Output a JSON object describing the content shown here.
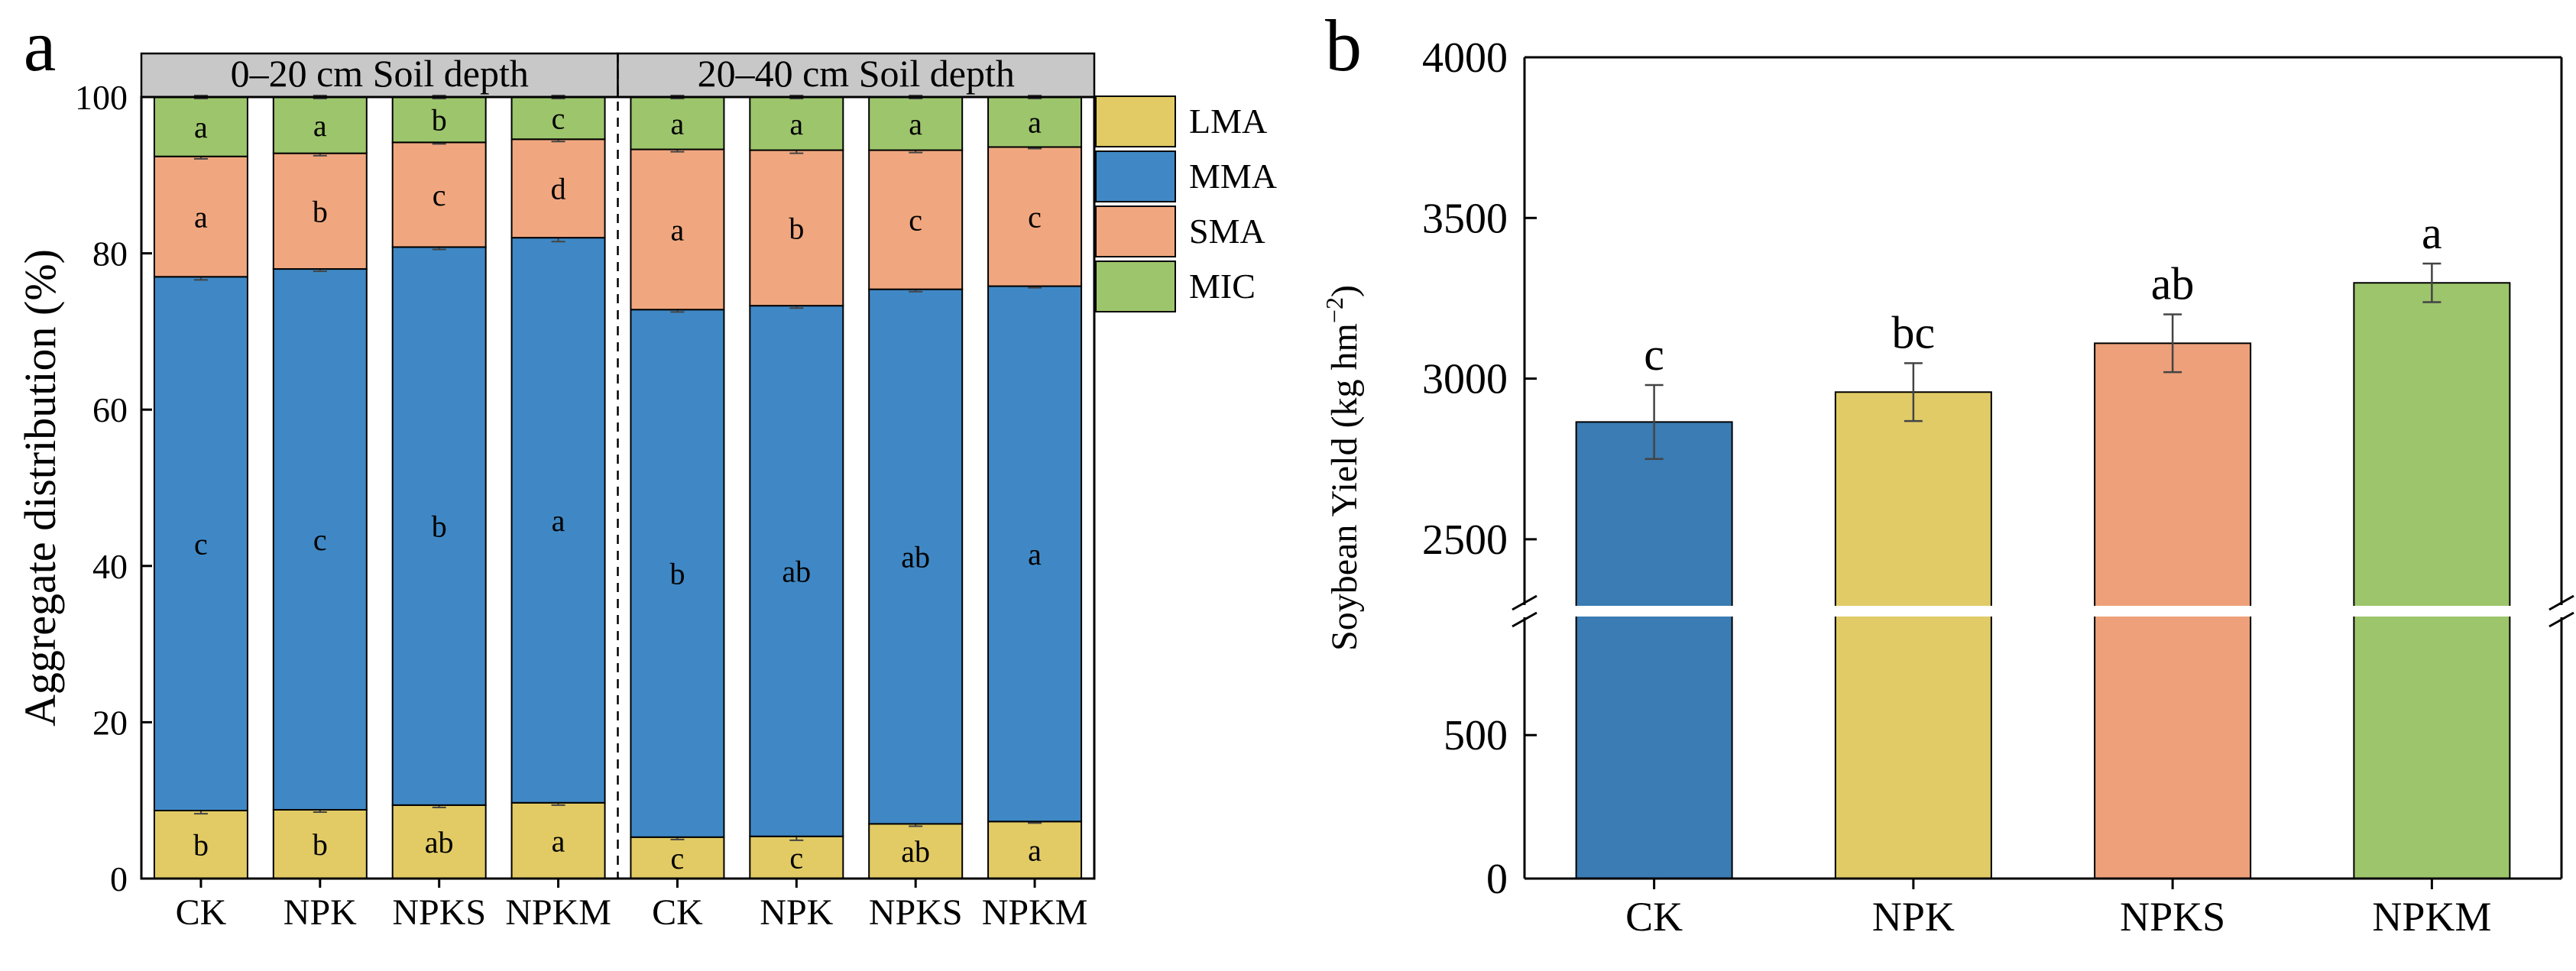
{
  "panel_labels": {
    "a": "a",
    "b": "b"
  },
  "legend": [
    {
      "label": "LMA",
      "color": "#E2CB64"
    },
    {
      "label": "MMA",
      "color": "#3F88C5"
    },
    {
      "label": "SMA",
      "color": "#F0A77F"
    },
    {
      "label": "MIC",
      "color": "#9DC56C"
    }
  ],
  "chart_data": [
    {
      "type": "bar",
      "stacked": true,
      "panel": "a",
      "ylabel": "Aggregate    distribution (%)",
      "ylim": [
        0,
        100
      ],
      "yticks": [
        "0",
        "20",
        "40",
        "60",
        "80",
        "100"
      ],
      "groups": [
        {
          "title": "0–20 cm Soil depth",
          "categories": [
            "CK",
            "NPK",
            "NPKS",
            "NPKM"
          ]
        },
        {
          "title": "20–40 cm Soil depth",
          "categories": [
            "CK",
            "NPK",
            "NPKS",
            "NPKM"
          ]
        }
      ],
      "series": [
        {
          "name": "LMA",
          "values": [
            8.7,
            8.8,
            9.4,
            9.7,
            5.3,
            5.4,
            7.0,
            7.3
          ],
          "errors": [
            0.4,
            0.3,
            0.3,
            0.3,
            0.3,
            0.5,
            0.3,
            0.2
          ],
          "letters": [
            "b",
            "b",
            "ab",
            "a",
            "c",
            "c",
            "ab",
            "a"
          ]
        },
        {
          "name": "MMA",
          "values": [
            68.3,
            69.2,
            71.4,
            72.3,
            67.5,
            67.9,
            68.4,
            68.5
          ],
          "errors": [
            0.4,
            0.3,
            0.3,
            0.5,
            0.3,
            0.3,
            0.3,
            0.2
          ],
          "letters": [
            "c",
            "c",
            "b",
            "a",
            "b",
            "ab",
            "ab",
            "a"
          ]
        },
        {
          "name": "SMA",
          "values": [
            15.4,
            14.8,
            13.4,
            12.6,
            20.5,
            19.9,
            17.8,
            17.8
          ],
          "errors": [
            0.3,
            0.3,
            0.2,
            0.3,
            0.3,
            0.4,
            0.3,
            0.2
          ],
          "letters": [
            "a",
            "b",
            "c",
            "d",
            "a",
            "b",
            "c",
            "c"
          ]
        },
        {
          "name": "MIC",
          "values": [
            7.6,
            7.2,
            5.8,
            5.4,
            6.7,
            6.8,
            6.8,
            6.4
          ],
          "errors": [
            0.2,
            0.2,
            0.2,
            0.2,
            0.2,
            0.2,
            0.2,
            0.2
          ],
          "letters": [
            "a",
            "a",
            "b",
            "c",
            "a",
            "a",
            "a",
            "a"
          ]
        }
      ]
    },
    {
      "type": "bar",
      "panel": "b",
      "ylabel": "Soybean Yield (kg hm",
      "ylabel_sup": "−2",
      "ylabel_close": ")",
      "categories": [
        "CK",
        "NPK",
        "NPKS",
        "NPKM"
      ],
      "values": [
        2865,
        2958,
        3110,
        3298
      ],
      "errors": [
        115,
        90,
        90,
        60
      ],
      "letters": [
        "c",
        "bc",
        "ab",
        "a"
      ],
      "colors": [
        "#3A7CB3",
        "#E0CB67",
        "#EDA07A",
        "#9DC56C"
      ],
      "axis_break": true,
      "lower_segment": {
        "range": [
          0,
          900
        ],
        "ticks": [
          "0",
          "500"
        ]
      },
      "upper_segment": {
        "range": [
          2300,
          4000
        ],
        "ticks": [
          "2500",
          "3000",
          "3500",
          "4000"
        ]
      }
    }
  ]
}
